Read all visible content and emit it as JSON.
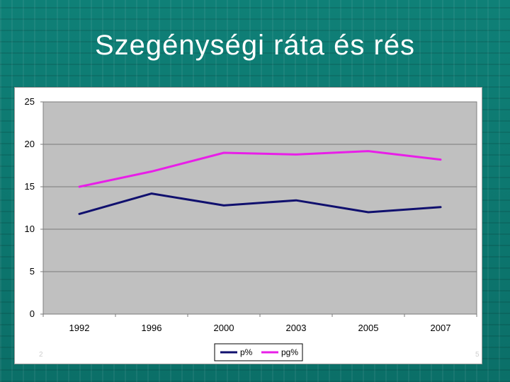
{
  "slide": {
    "title": "Szegénységi ráta és rés",
    "footer_left": "2",
    "footer_right": "5"
  },
  "colors": {
    "background": "#0e7c74",
    "plot_area": "#c0c0c0",
    "series_p": "#10106e",
    "series_pg": "#e81ee8"
  },
  "chart_data": {
    "type": "line",
    "categories": [
      "1992",
      "1996",
      "2000",
      "2003",
      "2005",
      "2007"
    ],
    "series": [
      {
        "name": "p%",
        "values": [
          11.8,
          14.2,
          12.8,
          13.4,
          12.0,
          12.6
        ],
        "color": "#10106e"
      },
      {
        "name": "pg%",
        "values": [
          15.0,
          16.8,
          19.0,
          18.8,
          19.2,
          18.2
        ],
        "color": "#e81ee8"
      }
    ],
    "ylim": [
      0,
      25
    ],
    "yticks": [
      "0",
      "5",
      "10",
      "15",
      "20",
      "25"
    ],
    "title": "",
    "xlabel": "",
    "ylabel": "",
    "grid": "horizontal",
    "legend": "bottom"
  }
}
